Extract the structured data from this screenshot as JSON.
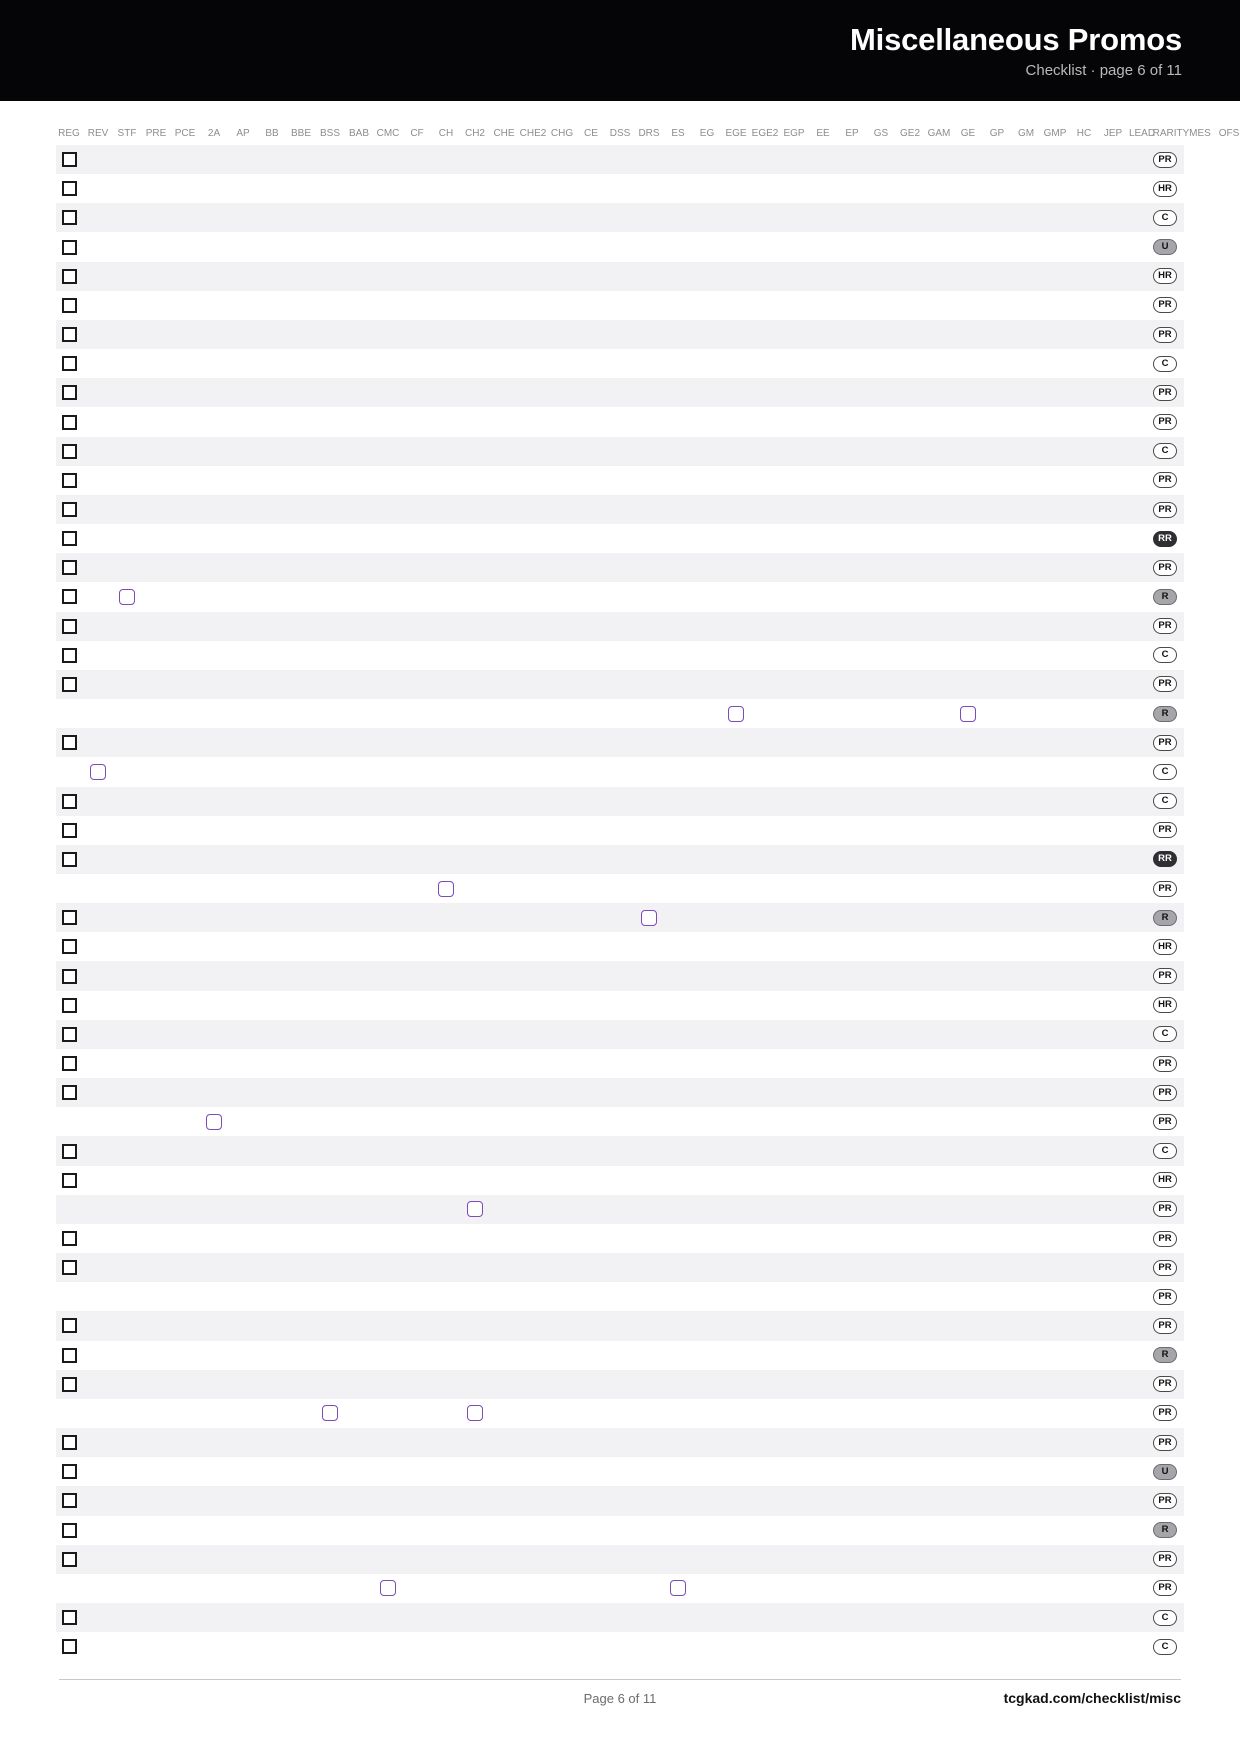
{
  "header": {
    "title": "Miscellaneous Promos",
    "subtitle": "Checklist · page 6 of 11"
  },
  "columns": [
    "REG",
    "REV",
    "STF",
    "PRE",
    "PCE",
    "2A",
    "AP",
    "BB",
    "BBE",
    "BSS",
    "BAB",
    "CMC",
    "CF",
    "CH",
    "CH2",
    "CHE",
    "CHE2",
    "CHG",
    "CE",
    "DSS",
    "DRS",
    "ES",
    "EG",
    "EGE",
    "EGE2",
    "EGP",
    "EE",
    "EP",
    "GS",
    "GE2",
    "GAM",
    "GE",
    "GP",
    "GM",
    "GMP",
    "HC",
    "JEP",
    "LEAD",
    "RARITY",
    "MES",
    "OFS"
  ],
  "rows": [
    {
      "reg": true,
      "variants": [],
      "rarity": "PR"
    },
    {
      "reg": true,
      "variants": [],
      "rarity": "HR"
    },
    {
      "reg": true,
      "variants": [],
      "rarity": "C"
    },
    {
      "reg": true,
      "variants": [],
      "rarity": "U"
    },
    {
      "reg": true,
      "variants": [],
      "rarity": "HR"
    },
    {
      "reg": true,
      "variants": [],
      "rarity": "PR"
    },
    {
      "reg": true,
      "variants": [],
      "rarity": "PR"
    },
    {
      "reg": true,
      "variants": [],
      "rarity": "C"
    },
    {
      "reg": true,
      "variants": [],
      "rarity": "PR"
    },
    {
      "reg": true,
      "variants": [],
      "rarity": "PR"
    },
    {
      "reg": true,
      "variants": [],
      "rarity": "C"
    },
    {
      "reg": true,
      "variants": [],
      "rarity": "PR"
    },
    {
      "reg": true,
      "variants": [],
      "rarity": "PR"
    },
    {
      "reg": true,
      "variants": [],
      "rarity": "RR"
    },
    {
      "reg": true,
      "variants": [],
      "rarity": "PR"
    },
    {
      "reg": true,
      "variants": [
        "STF"
      ],
      "rarity": "R"
    },
    {
      "reg": true,
      "variants": [],
      "rarity": "PR"
    },
    {
      "reg": true,
      "variants": [],
      "rarity": "C"
    },
    {
      "reg": true,
      "variants": [],
      "rarity": "PR"
    },
    {
      "reg": false,
      "variants": [
        "EGE",
        "GE"
      ],
      "rarity": "R"
    },
    {
      "reg": true,
      "variants": [],
      "rarity": "PR"
    },
    {
      "reg": false,
      "variants": [
        "REV"
      ],
      "rarity": "C"
    },
    {
      "reg": true,
      "variants": [],
      "rarity": "C"
    },
    {
      "reg": true,
      "variants": [],
      "rarity": "PR"
    },
    {
      "reg": true,
      "variants": [],
      "rarity": "RR"
    },
    {
      "reg": false,
      "variants": [
        "CH"
      ],
      "rarity": "PR"
    },
    {
      "reg": true,
      "variants": [
        "DRS"
      ],
      "rarity": "R"
    },
    {
      "reg": true,
      "variants": [],
      "rarity": "HR"
    },
    {
      "reg": true,
      "variants": [],
      "rarity": "PR"
    },
    {
      "reg": true,
      "variants": [],
      "rarity": "HR"
    },
    {
      "reg": true,
      "variants": [],
      "rarity": "C"
    },
    {
      "reg": true,
      "variants": [],
      "rarity": "PR"
    },
    {
      "reg": true,
      "variants": [],
      "rarity": "PR"
    },
    {
      "reg": false,
      "variants": [
        "2A"
      ],
      "rarity": "PR"
    },
    {
      "reg": true,
      "variants": [],
      "rarity": "C"
    },
    {
      "reg": true,
      "variants": [],
      "rarity": "HR"
    },
    {
      "reg": false,
      "variants": [
        "CH2"
      ],
      "rarity": "PR"
    },
    {
      "reg": true,
      "variants": [],
      "rarity": "PR"
    },
    {
      "reg": true,
      "variants": [],
      "rarity": "PR"
    },
    {
      "reg": false,
      "variants": [],
      "rarity": "PR"
    },
    {
      "reg": true,
      "variants": [],
      "rarity": "PR"
    },
    {
      "reg": true,
      "variants": [],
      "rarity": "R"
    },
    {
      "reg": true,
      "variants": [],
      "rarity": "PR"
    },
    {
      "reg": false,
      "variants": [
        "BSS",
        "CH2"
      ],
      "rarity": "PR"
    },
    {
      "reg": true,
      "variants": [],
      "rarity": "PR"
    },
    {
      "reg": true,
      "variants": [],
      "rarity": "U"
    },
    {
      "reg": true,
      "variants": [],
      "rarity": "PR"
    },
    {
      "reg": true,
      "variants": [],
      "rarity": "R"
    },
    {
      "reg": true,
      "variants": [],
      "rarity": "PR"
    },
    {
      "reg": false,
      "variants": [
        "CMC",
        "ES"
      ],
      "rarity": "PR"
    },
    {
      "reg": true,
      "variants": [],
      "rarity": "C"
    },
    {
      "reg": true,
      "variants": [],
      "rarity": "C"
    }
  ],
  "footer": {
    "page": "Page 6 of 11",
    "url": "tcgkad.com/checklist/misc"
  }
}
